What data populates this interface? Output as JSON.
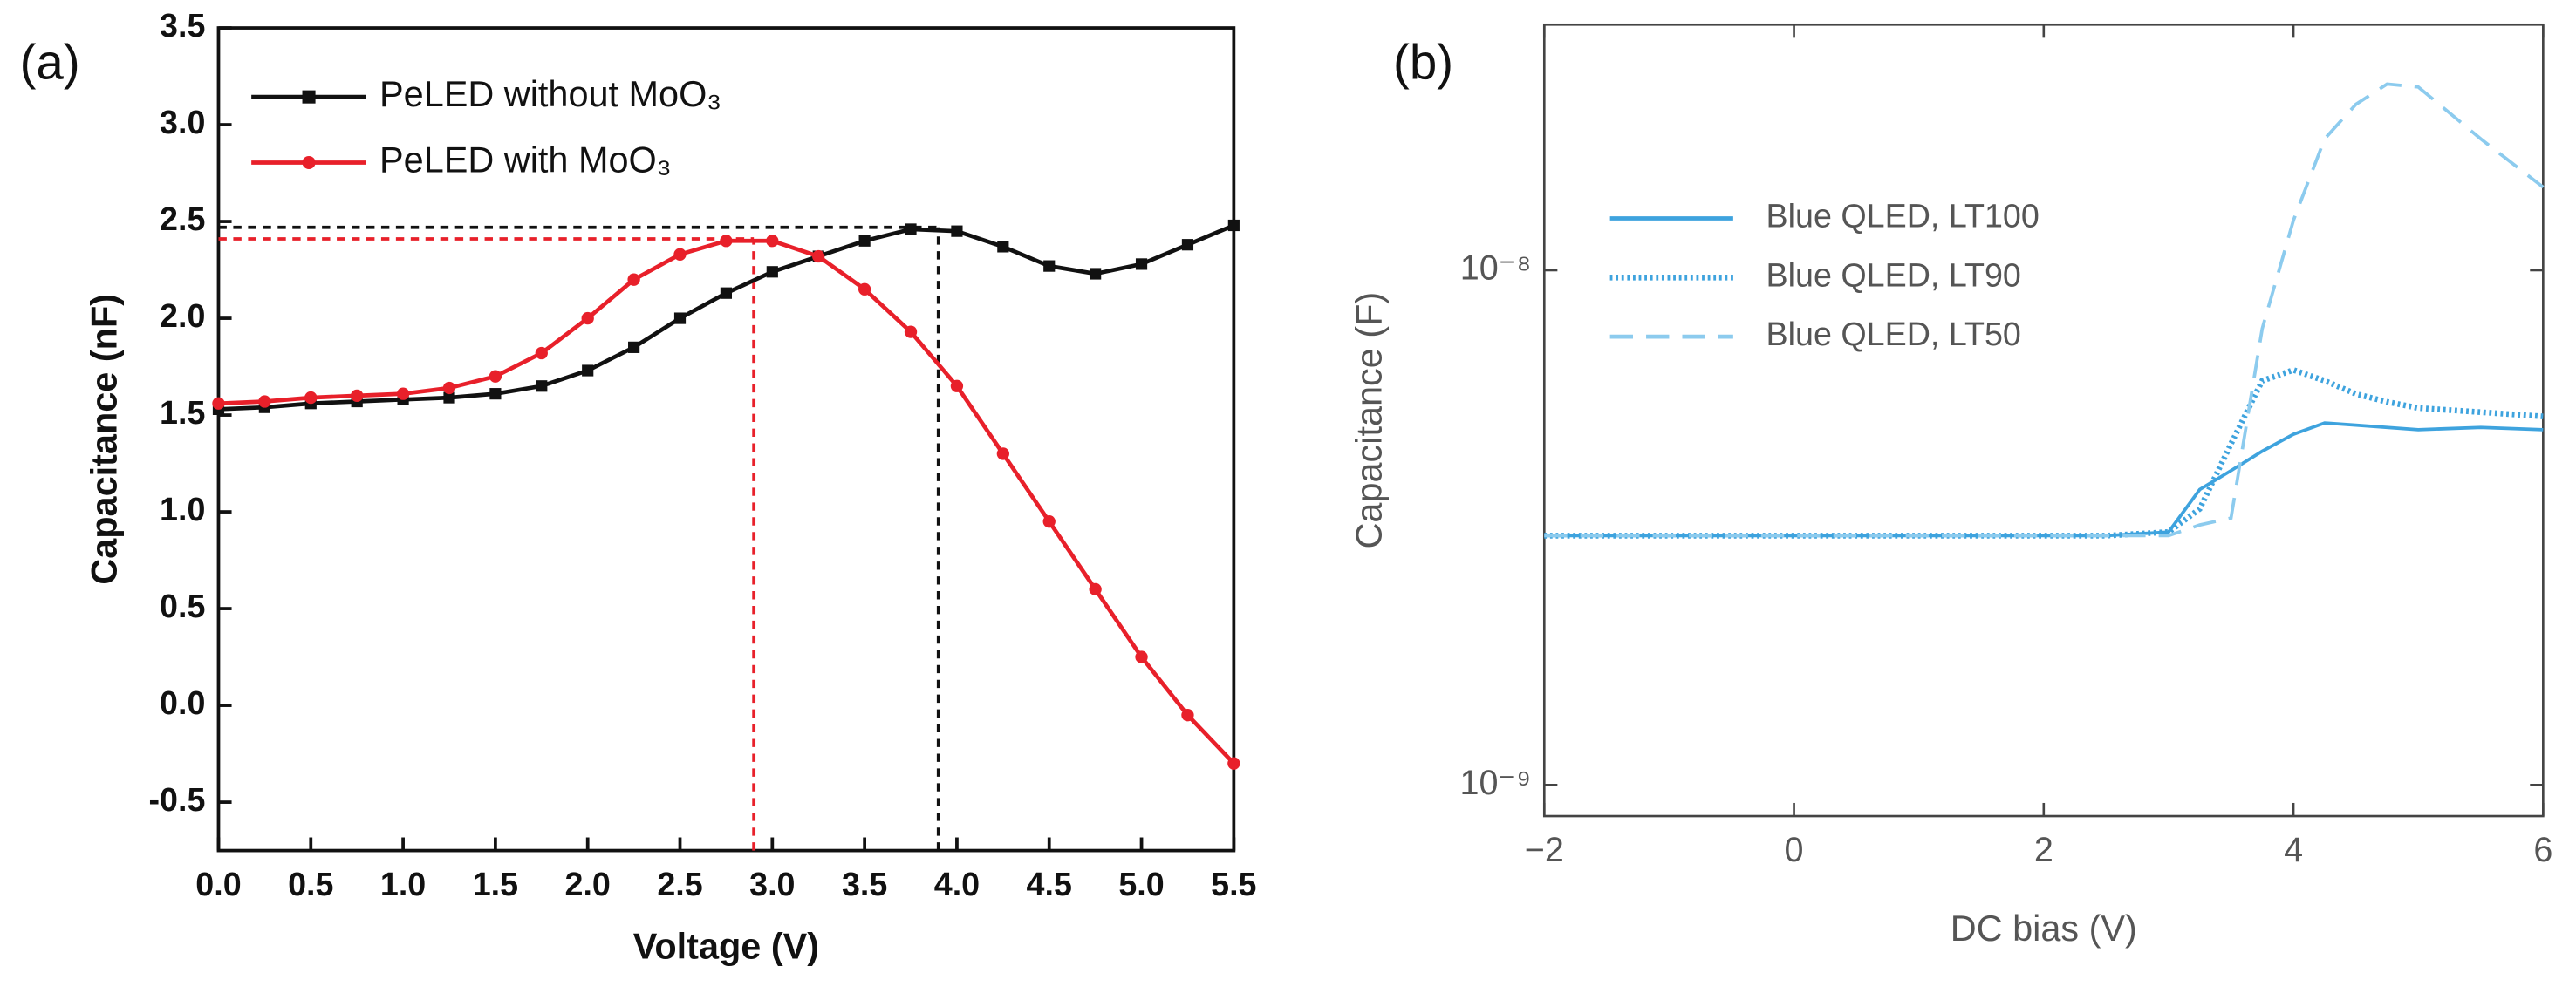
{
  "chart_data": [
    {
      "type": "line",
      "panel_label": "(a)",
      "x_label": "Voltage (V)",
      "y_label": "Capacitance (nF)",
      "xlim": [
        0,
        5.5
      ],
      "ylim": [
        -0.75,
        3.5
      ],
      "xticks": [
        {
          "value": 0,
          "label": "0.0"
        },
        0.5,
        {
          "value": 1,
          "label": "1.0"
        },
        1.5,
        {
          "value": 2,
          "label": "2.0"
        },
        2.5,
        {
          "value": 3,
          "label": "3.0"
        },
        3.5,
        {
          "value": 4,
          "label": "4.0"
        },
        4.5,
        {
          "value": 5,
          "label": "5.0"
        },
        5.5
      ],
      "yticks": [
        -0.5,
        {
          "value": 0,
          "label": "0.0"
        },
        0.5,
        {
          "value": 1,
          "label": "1.0"
        },
        1.5,
        {
          "value": 2,
          "label": "2.0"
        },
        2.5,
        {
          "value": 3,
          "label": "3.0"
        },
        3.5
      ],
      "legend": "upper left",
      "x": [
        0,
        0.25,
        0.5,
        0.75,
        1,
        1.25,
        1.5,
        1.75,
        2,
        2.25,
        2.5,
        2.75,
        3,
        3.25,
        3.5,
        3.75,
        4,
        4.25,
        4.5,
        4.75,
        5,
        5.25,
        5.5
      ],
      "series": [
        {
          "name": "PeLED without MoO₃",
          "color": "#111111",
          "marker": "square",
          "line_style": "solid",
          "values": [
            1.53,
            1.54,
            1.56,
            1.57,
            1.58,
            1.59,
            1.61,
            1.65,
            1.73,
            1.85,
            2.0,
            2.13,
            2.24,
            2.32,
            2.4,
            2.46,
            2.45,
            2.37,
            2.27,
            2.23,
            2.28,
            2.38,
            2.48
          ]
        },
        {
          "name": "PeLED with MoO₃",
          "color": "#e8202a",
          "marker": "circle",
          "line_style": "solid",
          "values": [
            1.56,
            1.57,
            1.59,
            1.6,
            1.61,
            1.64,
            1.7,
            1.82,
            2.0,
            2.2,
            2.33,
            2.4,
            2.4,
            2.32,
            2.15,
            1.93,
            1.65,
            1.3,
            0.95,
            0.6,
            0.25,
            -0.05,
            -0.3
          ]
        }
      ],
      "reference_lines": [
        {
          "x": 3.9,
          "y": 2.47,
          "color": "#111111"
        },
        {
          "x": 2.9,
          "y": 2.41,
          "color": "#e8202a"
        }
      ]
    },
    {
      "type": "line",
      "panel_label": "(b)",
      "x_label": "DC bias (V)",
      "y_label": "Capacitance (F)",
      "log_scale": true,
      "xlim": [
        -2,
        6
      ],
      "ylim": [
        8.7e-10,
        3e-08
      ],
      "xticks": [
        {
          "value": -2,
          "label": "−2"
        },
        0,
        2,
        4,
        6
      ],
      "yticks": [
        {
          "value": 1e-09,
          "label": "10⁻⁹"
        },
        {
          "value": 1e-08,
          "label": "10⁻⁸"
        }
      ],
      "legend": "upper left",
      "x": [
        -2,
        -1,
        0,
        1,
        2,
        2.5,
        3,
        3.25,
        3.5,
        3.75,
        4,
        4.25,
        4.5,
        4.75,
        5,
        5.5,
        6
      ],
      "series": [
        {
          "name": "Blue QLED, LT100",
          "color": "#3ea3de",
          "line_style": "solid",
          "values": [
            3.05e-09,
            3.05e-09,
            3.05e-09,
            3.05e-09,
            3.05e-09,
            3.05e-09,
            3.1e-09,
            3.75e-09,
            4.08e-09,
            4.45e-09,
            4.8e-09,
            5.05e-09,
            5e-09,
            4.95e-09,
            4.9e-09,
            4.95e-09,
            4.9e-09
          ]
        },
        {
          "name": "Blue QLED, LT90",
          "color": "#3ea3de",
          "line_style": "dotted",
          "values": [
            3.05e-09,
            3.05e-09,
            3.05e-09,
            3.05e-09,
            3.05e-09,
            3.05e-09,
            3.1e-09,
            3.44e-09,
            4.6e-09,
            6.1e-09,
            6.4e-09,
            6.1e-09,
            5.75e-09,
            5.55e-09,
            5.4e-09,
            5.3e-09,
            5.2e-09
          ]
        },
        {
          "name": "Blue QLED, LT50",
          "color": "#8ccbee",
          "line_style": "dashed",
          "values": [
            3.05e-09,
            3.05e-09,
            3.05e-09,
            3.05e-09,
            3.05e-09,
            3.05e-09,
            3.05e-09,
            3.2e-09,
            3.3e-09,
            7.7e-09,
            1.25e-08,
            1.8e-08,
            2.1e-08,
            2.3e-08,
            2.27e-08,
            1.8e-08,
            1.45e-08
          ]
        }
      ]
    }
  ]
}
